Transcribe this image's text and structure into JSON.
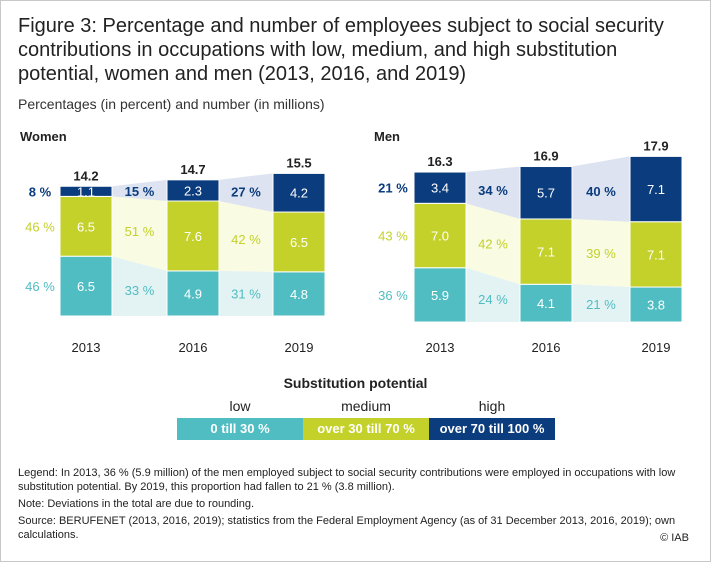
{
  "title": "Figure 3: Percentage and number of employees subject to social security contributions in occupations with low, medium, and high substitution potential, women and men (2013, 2016, and 2019)",
  "subtitle": "Percentages (in percent) and number (in millions)",
  "colors": {
    "low": "#50bdc2",
    "medium": "#c3d12a",
    "high": "#0b3c7d"
  },
  "chart_data": [
    {
      "type": "bar",
      "stacked": true,
      "title": "Women",
      "categories": [
        "2013",
        "2016",
        "2019"
      ],
      "ylim": [
        0,
        16
      ],
      "totals": [
        "14.2",
        "14.7",
        "15.5"
      ],
      "series": [
        {
          "name": "0 till 30 %",
          "values": [
            6.5,
            4.9,
            4.8
          ],
          "labels": [
            "6.5",
            "4.9",
            "4.8"
          ],
          "shares": [
            "46 %",
            "33 %",
            "31 %"
          ]
        },
        {
          "name": "over 30 till 70 %",
          "values": [
            6.5,
            7.6,
            6.5
          ],
          "labels": [
            "6.5",
            "7.6",
            "6.5"
          ],
          "shares": [
            "46 %",
            "51 %",
            "42 %"
          ]
        },
        {
          "name": "over 70 till 100 %",
          "values": [
            1.1,
            2.3,
            4.2
          ],
          "labels": [
            "1.1",
            "2.3",
            "4.2"
          ],
          "shares": [
            "8 %",
            "15 %",
            "27 %"
          ]
        }
      ]
    },
    {
      "type": "bar",
      "stacked": true,
      "title": "Men",
      "categories": [
        "2013",
        "2016",
        "2019"
      ],
      "ylim": [
        0,
        18
      ],
      "totals": [
        "16.3",
        "16.9",
        "17.9"
      ],
      "series": [
        {
          "name": "0 till 30 %",
          "values": [
            5.9,
            4.1,
            3.8
          ],
          "labels": [
            "5.9",
            "4.1",
            "3.8"
          ],
          "shares": [
            "36 %",
            "24 %",
            "21 %"
          ]
        },
        {
          "name": "over 30 till 70 %",
          "values": [
            7.0,
            7.1,
            7.1
          ],
          "labels": [
            "7.0",
            "7.1",
            "7.1"
          ],
          "shares": [
            "43 %",
            "42 %",
            "39 %"
          ]
        },
        {
          "name": "over 70 till 100 %",
          "values": [
            3.4,
            5.7,
            7.1
          ],
          "labels": [
            "3.4",
            "5.7",
            "7.1"
          ],
          "shares": [
            "21 %",
            "34 %",
            "40 %"
          ]
        }
      ]
    }
  ],
  "legend": {
    "title": "Substitution potential",
    "items": [
      {
        "head": "low",
        "label": "0 till 30 %"
      },
      {
        "head": "medium",
        "label": "over 30 till 70 %"
      },
      {
        "head": "high",
        "label": "over 70 till 100 %"
      }
    ]
  },
  "notes": {
    "legend_note": "Legend: In 2013, 36 % (5.9 million) of the men employed subject to social security contributions were employed in occupations with low substitution potential. By 2019, this proportion had fallen to 21 % (3.8 million).",
    "rounding": "Note: Deviations in the total are due to rounding.",
    "source": "Source: BERUFENET (2013, 2016, 2019); statistics from the Federal Employment Agency (as of 31 December 2013, 2016, 2019); own calculations.",
    "copyright": "© IAB"
  }
}
